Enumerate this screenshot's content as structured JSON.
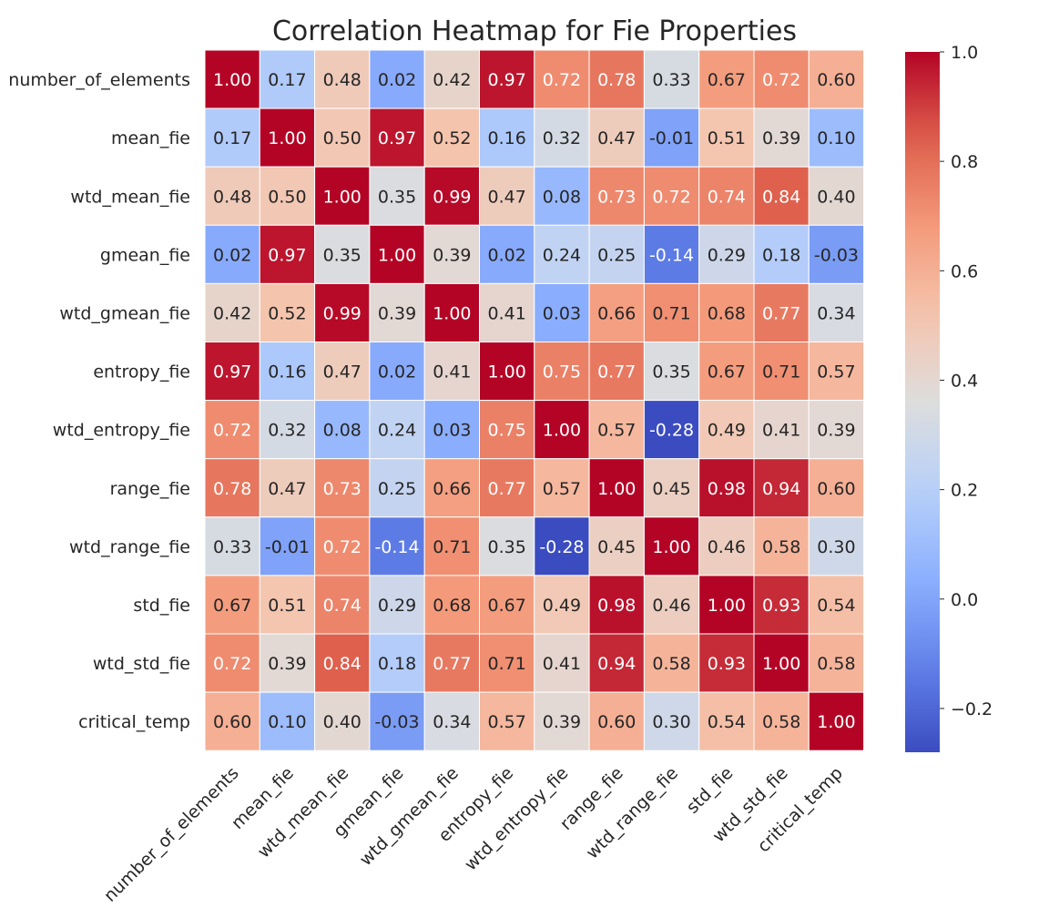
{
  "chart_data": {
    "type": "heatmap",
    "title": "Correlation Heatmap for Fie Properties",
    "labels": [
      "number_of_elements",
      "mean_fie",
      "wtd_mean_fie",
      "gmean_fie",
      "wtd_gmean_fie",
      "entropy_fie",
      "wtd_entropy_fie",
      "range_fie",
      "wtd_range_fie",
      "std_fie",
      "wtd_std_fie",
      "critical_temp"
    ],
    "matrix": [
      [
        1.0,
        0.17,
        0.48,
        0.02,
        0.42,
        0.97,
        0.72,
        0.78,
        0.33,
        0.67,
        0.72,
        0.6
      ],
      [
        0.17,
        1.0,
        0.5,
        0.97,
        0.52,
        0.16,
        0.32,
        0.47,
        -0.01,
        0.51,
        0.39,
        0.1
      ],
      [
        0.48,
        0.5,
        1.0,
        0.35,
        0.99,
        0.47,
        0.08,
        0.73,
        0.72,
        0.74,
        0.84,
        0.4
      ],
      [
        0.02,
        0.97,
        0.35,
        1.0,
        0.39,
        0.02,
        0.24,
        0.25,
        -0.14,
        0.29,
        0.18,
        -0.03
      ],
      [
        0.42,
        0.52,
        0.99,
        0.39,
        1.0,
        0.41,
        0.03,
        0.66,
        0.71,
        0.68,
        0.77,
        0.34
      ],
      [
        0.97,
        0.16,
        0.47,
        0.02,
        0.41,
        1.0,
        0.75,
        0.77,
        0.35,
        0.67,
        0.71,
        0.57
      ],
      [
        0.72,
        0.32,
        0.08,
        0.24,
        0.03,
        0.75,
        1.0,
        0.57,
        -0.28,
        0.49,
        0.41,
        0.39
      ],
      [
        0.78,
        0.47,
        0.73,
        0.25,
        0.66,
        0.77,
        0.57,
        1.0,
        0.45,
        0.98,
        0.94,
        0.6
      ],
      [
        0.33,
        -0.01,
        0.72,
        -0.14,
        0.71,
        0.35,
        -0.28,
        0.45,
        1.0,
        0.46,
        0.58,
        0.3
      ],
      [
        0.67,
        0.51,
        0.74,
        0.29,
        0.68,
        0.67,
        0.49,
        0.98,
        0.46,
        1.0,
        0.93,
        0.54
      ],
      [
        0.72,
        0.39,
        0.84,
        0.18,
        0.77,
        0.71,
        0.41,
        0.94,
        0.58,
        0.93,
        1.0,
        0.58
      ],
      [
        0.6,
        0.1,
        0.4,
        -0.03,
        0.34,
        0.57,
        0.39,
        0.6,
        0.3,
        0.54,
        0.58,
        1.0
      ]
    ],
    "colormap": "coolwarm",
    "vmin": -0.28,
    "vmax": 1.0,
    "annotation_format": "0.00",
    "colorbar_ticks": [
      1.0,
      0.8,
      0.6,
      0.4,
      0.2,
      0.0,
      -0.2
    ],
    "colorbar_tick_labels": [
      "1.0",
      "0.8",
      "0.6",
      "0.4",
      "0.2",
      "0.0",
      "−0.2"
    ]
  }
}
